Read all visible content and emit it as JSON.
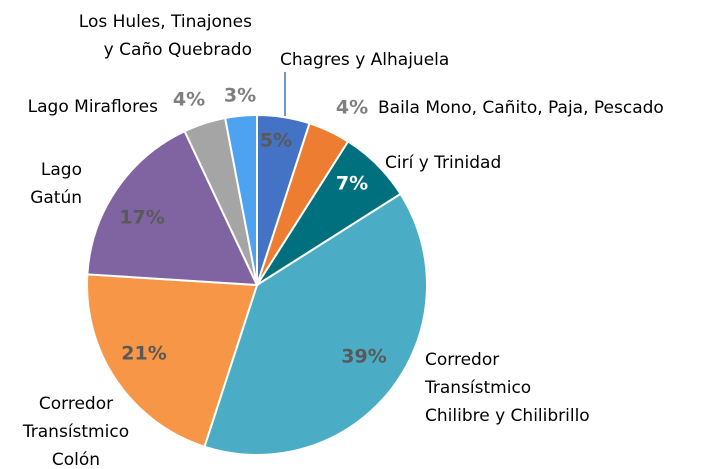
{
  "chart_data": {
    "type": "pie",
    "categories": [
      "Chagres y Alhajuela",
      "Baila Mono, Cañito, Paja, Pescado",
      "Cirí y Trinidad",
      "Corredor\nTransístmico\nChilibre y Chilibrillo",
      "Corredor\nTransístmico\nColón",
      "Lago\nGatún",
      "Lago Miraflores",
      "Los Hules, Tinajones\ny Caño Quebrado"
    ],
    "values": [
      5,
      4,
      7,
      39,
      21,
      17,
      4,
      3
    ],
    "value_labels": [
      "5%",
      "4%",
      "7%",
      "39%",
      "21%",
      "17%",
      "4%",
      "3%"
    ],
    "colors": [
      "#4472c4",
      "#ed7d31",
      "#00707f",
      "#4bacc6",
      "#f79646",
      "#8064a2",
      "#a5a5a5",
      "#4da3f0"
    ]
  }
}
